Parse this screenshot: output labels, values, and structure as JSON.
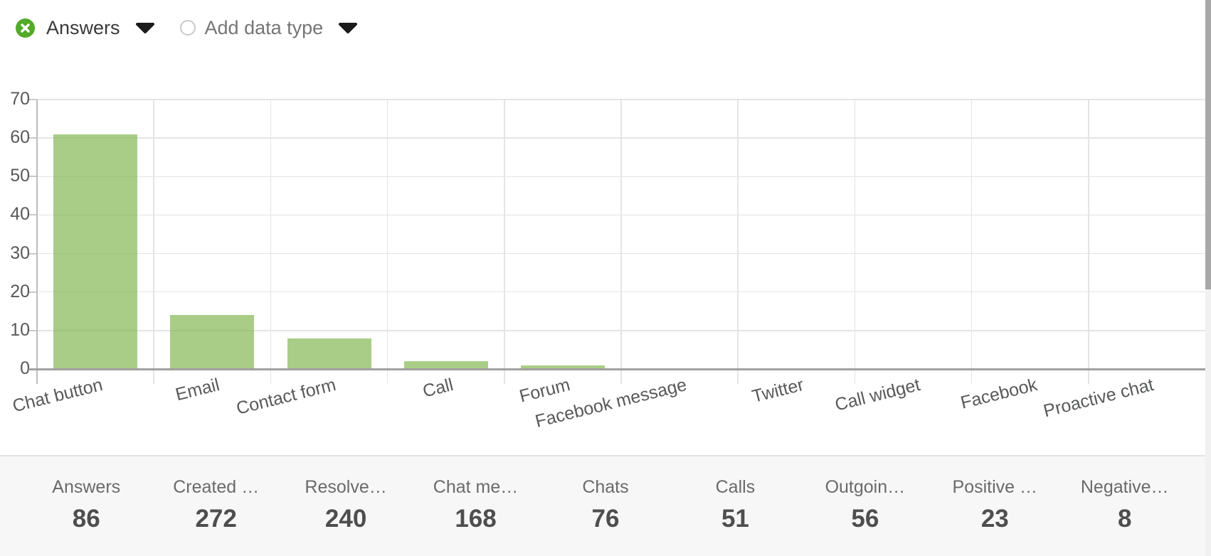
{
  "controls": {
    "series_selector": {
      "label": "Answers",
      "icon": "remove-icon"
    },
    "add_data_type": {
      "label": "Add data type",
      "icon": "radio-icon"
    }
  },
  "chart_data": {
    "type": "bar",
    "title": "",
    "categories": [
      "Chat button",
      "Email",
      "Contact form",
      "Call",
      "Forum",
      "Facebook message",
      "Twitter",
      "Call widget",
      "Facebook",
      "Proactive chat"
    ],
    "series": [
      {
        "name": "Answers",
        "values": [
          61,
          14,
          8,
          2,
          1,
          0,
          0,
          0,
          0,
          0
        ]
      }
    ],
    "xlabel": "",
    "ylabel": "",
    "ylim": [
      0,
      70
    ],
    "yticks": [
      0,
      10,
      20,
      30,
      40,
      50,
      60,
      70
    ],
    "grid": true,
    "legend_position": "none"
  },
  "stats": {
    "items": [
      {
        "label": "Answers",
        "value": "86"
      },
      {
        "label": "Created …",
        "value": "272"
      },
      {
        "label": "Resolve…",
        "value": "240"
      },
      {
        "label": "Chat me…",
        "value": "168"
      },
      {
        "label": "Chats",
        "value": "76"
      },
      {
        "label": "Calls",
        "value": "51"
      },
      {
        "label": "Outgoin…",
        "value": "56"
      },
      {
        "label": "Positive …",
        "value": "23"
      },
      {
        "label": "Negative…",
        "value": "8"
      }
    ]
  },
  "colors": {
    "icon_green": "#52aa28",
    "bar_fill": "rgba(125,179,73,0.66)",
    "axis_text": "#58595b",
    "grid_line": "#e4e4e4",
    "baseline": "#a1a1a1"
  }
}
